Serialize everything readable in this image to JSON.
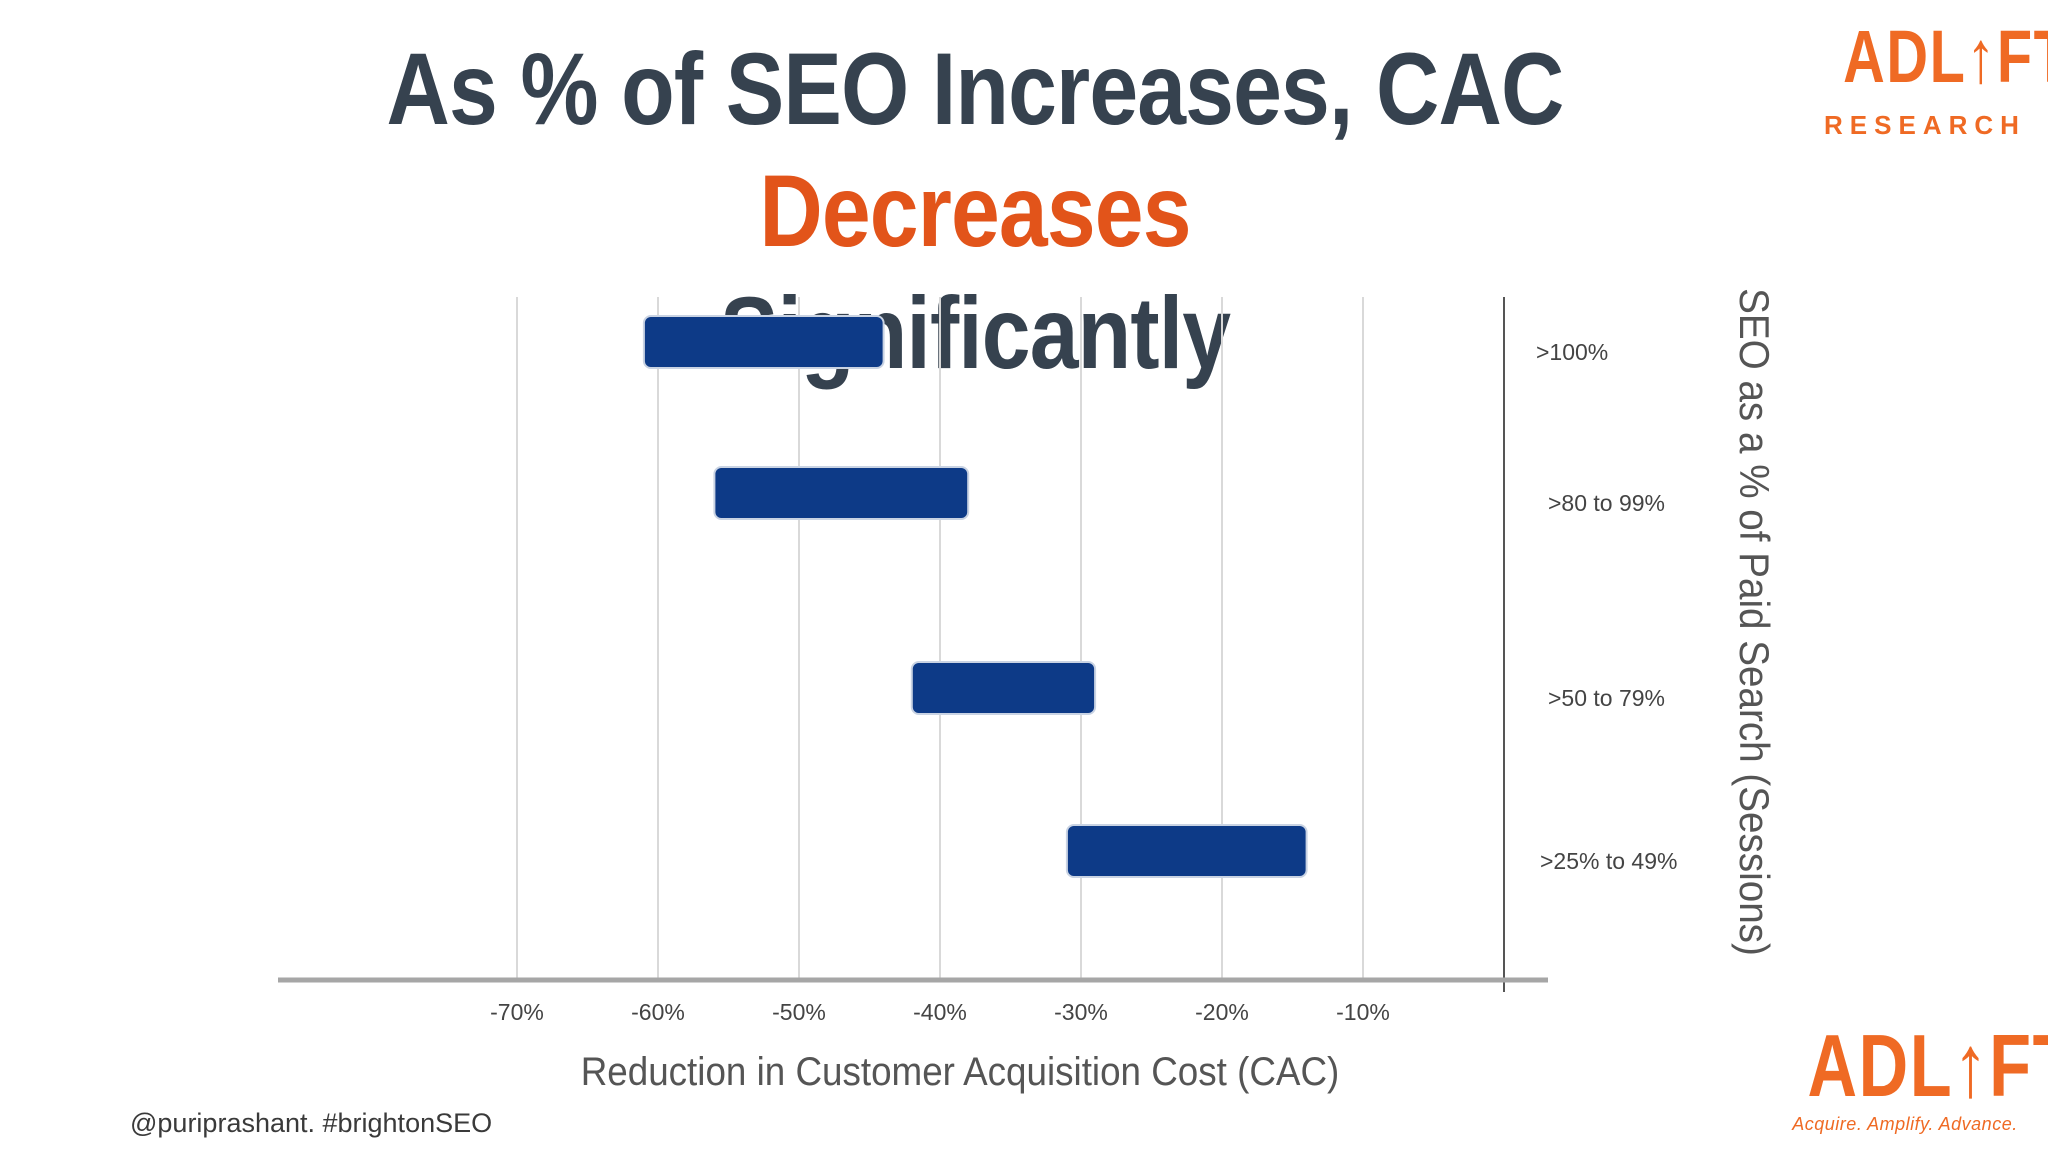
{
  "title": {
    "main": "As % of SEO Increases, CAC ",
    "accent": "Decreases",
    "line2": "Significantly"
  },
  "logo": {
    "top_wordmark": "ADL↑FT",
    "top_sub": "RESEARCH",
    "bottom_wordmark": "ADL↑FT",
    "bottom_tagline": "Acquire. Amplify. Advance."
  },
  "footer": {
    "handle": "@puriprashant. #brightonSEO"
  },
  "colors": {
    "bar": "#0d3a87",
    "accent": "#e2541a",
    "logo": "#ef6a24",
    "title": "#36424f"
  },
  "chart_data": {
    "type": "bar",
    "subtype": "floating-horizontal",
    "xlabel": "Reduction in Customer Acquisition Cost (CAC)",
    "ylabel": "SEO as a % of Paid Search (Sessions)",
    "xlim": [
      -80,
      0
    ],
    "xticks": [
      -70,
      -60,
      -50,
      -40,
      -30,
      -20,
      -10
    ],
    "xtick_labels": [
      "-70%",
      "-60%",
      "-50%",
      "-40%",
      "-30%",
      "-20%",
      "-10%"
    ],
    "grid": "vertical",
    "categories": [
      ">100%",
      ">80 to 99%",
      ">50 to 79%",
      ">25% to 49%"
    ],
    "ranges": [
      [
        -61,
        -44
      ],
      [
        -56,
        -38
      ],
      [
        -42,
        -29
      ],
      [
        -31,
        -14
      ]
    ]
  }
}
